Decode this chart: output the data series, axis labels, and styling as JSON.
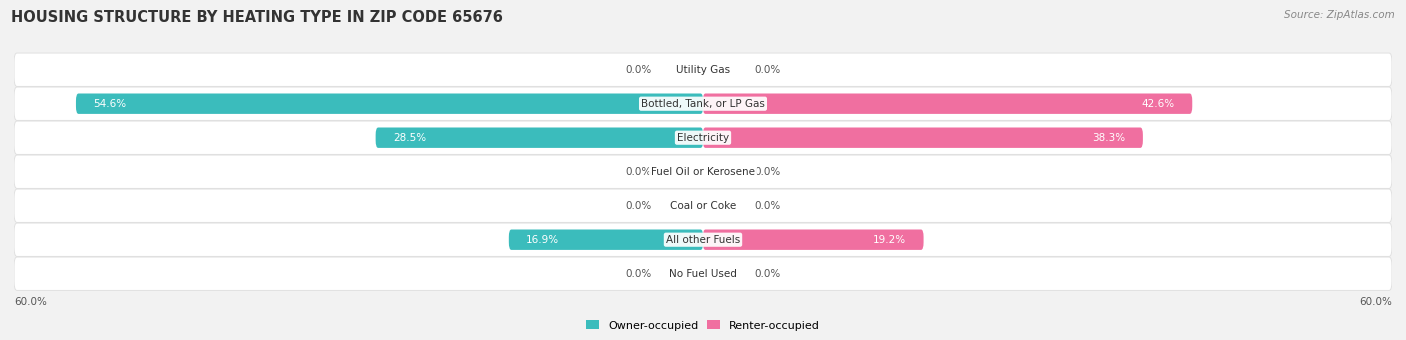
{
  "title": "HOUSING STRUCTURE BY HEATING TYPE IN ZIP CODE 65676",
  "source": "Source: ZipAtlas.com",
  "categories": [
    "Utility Gas",
    "Bottled, Tank, or LP Gas",
    "Electricity",
    "Fuel Oil or Kerosene",
    "Coal or Coke",
    "All other Fuels",
    "No Fuel Used"
  ],
  "owner_values": [
    0.0,
    54.6,
    28.5,
    0.0,
    0.0,
    16.9,
    0.0
  ],
  "renter_values": [
    0.0,
    42.6,
    38.3,
    0.0,
    0.0,
    19.2,
    0.0
  ],
  "owner_color": "#3BBCBC",
  "renter_color": "#F06FA0",
  "background_color": "#f2f2f2",
  "row_bg_color": "#ffffff",
  "row_edge_color": "#dddddd",
  "max_value": 60.0,
  "axis_label_left": "60.0%",
  "axis_label_right": "60.0%",
  "title_fontsize": 10.5,
  "source_fontsize": 7.5,
  "label_fontsize": 7.5,
  "category_fontsize": 7.5,
  "legend_fontsize": 8,
  "inside_threshold": 8.0
}
